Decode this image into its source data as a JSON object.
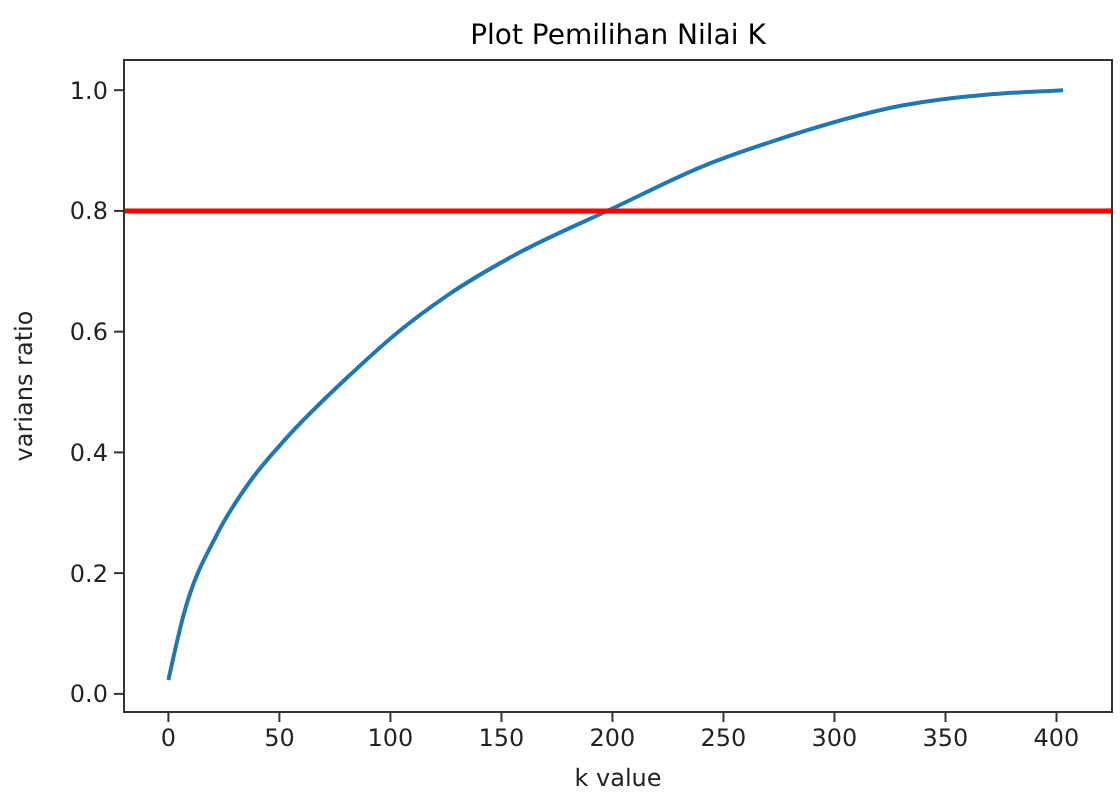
{
  "chart_data": {
    "type": "line",
    "title": "Plot Pemilihan Nilai K",
    "xlabel": "k value",
    "ylabel": "varians ratio",
    "series": [
      {
        "color": "#1f77b4",
        "x": [
          0,
          7,
          22,
          37,
          52,
          82,
          102,
          126,
          156,
          200,
          242,
          271,
          331,
          403
        ],
        "values": [
          0.023,
          0.133,
          0.265,
          0.353,
          0.419,
          0.529,
          0.595,
          0.661,
          0.727,
          0.804,
          0.876,
          0.914,
          0.975,
          1.0
        ]
      }
    ],
    "xlim": [
      -20,
      425
    ],
    "xticks": [
      0,
      50,
      100,
      150,
      200,
      250,
      300,
      350,
      400
    ],
    "ylim": [
      -0.03,
      1.05
    ],
    "yticks": [
      {
        "value": 0,
        "label": "0.0"
      },
      {
        "value": 0.2,
        "label": "0.2"
      },
      {
        "value": 0.4,
        "label": "0.4"
      },
      {
        "value": 0.6,
        "label": "0.6"
      },
      {
        "value": 0.8,
        "label": "0.8"
      },
      {
        "value": 1,
        "label": "1.0"
      }
    ],
    "ref_lines": [
      {
        "axis": "y",
        "value": 0.8,
        "color": "#ff0000"
      }
    ],
    "grid": false
  }
}
